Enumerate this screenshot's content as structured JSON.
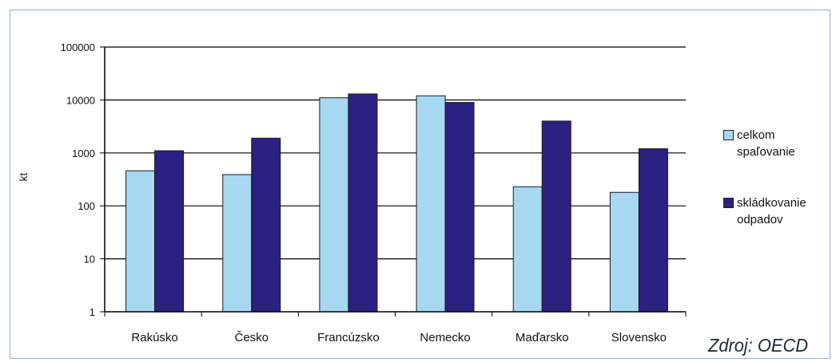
{
  "chart_data": {
    "type": "bar",
    "scale": "log",
    "ylabel": "kt",
    "ylim": [
      1,
      100000
    ],
    "yticks": [
      "1",
      "10",
      "100",
      "1000",
      "10000",
      "100000"
    ],
    "grid": true,
    "legend_position": "right",
    "categories": [
      "Rakúsko",
      "Česko",
      "Francúzsko",
      "Nemecko",
      "Maďarsko",
      "Slovensko"
    ],
    "series": [
      {
        "name_lines": [
          "celkom",
          "spaľovanie"
        ],
        "color": "#a6d8f2",
        "values": [
          460,
          390,
          11000,
          12000,
          230,
          180
        ]
      },
      {
        "name_lines": [
          "skládkovanie",
          "odpadov"
        ],
        "color": "#2b2180",
        "values": [
          1100,
          1900,
          13000,
          9000,
          4000,
          1200
        ]
      }
    ]
  },
  "source_text": "Zdroj: OECD"
}
